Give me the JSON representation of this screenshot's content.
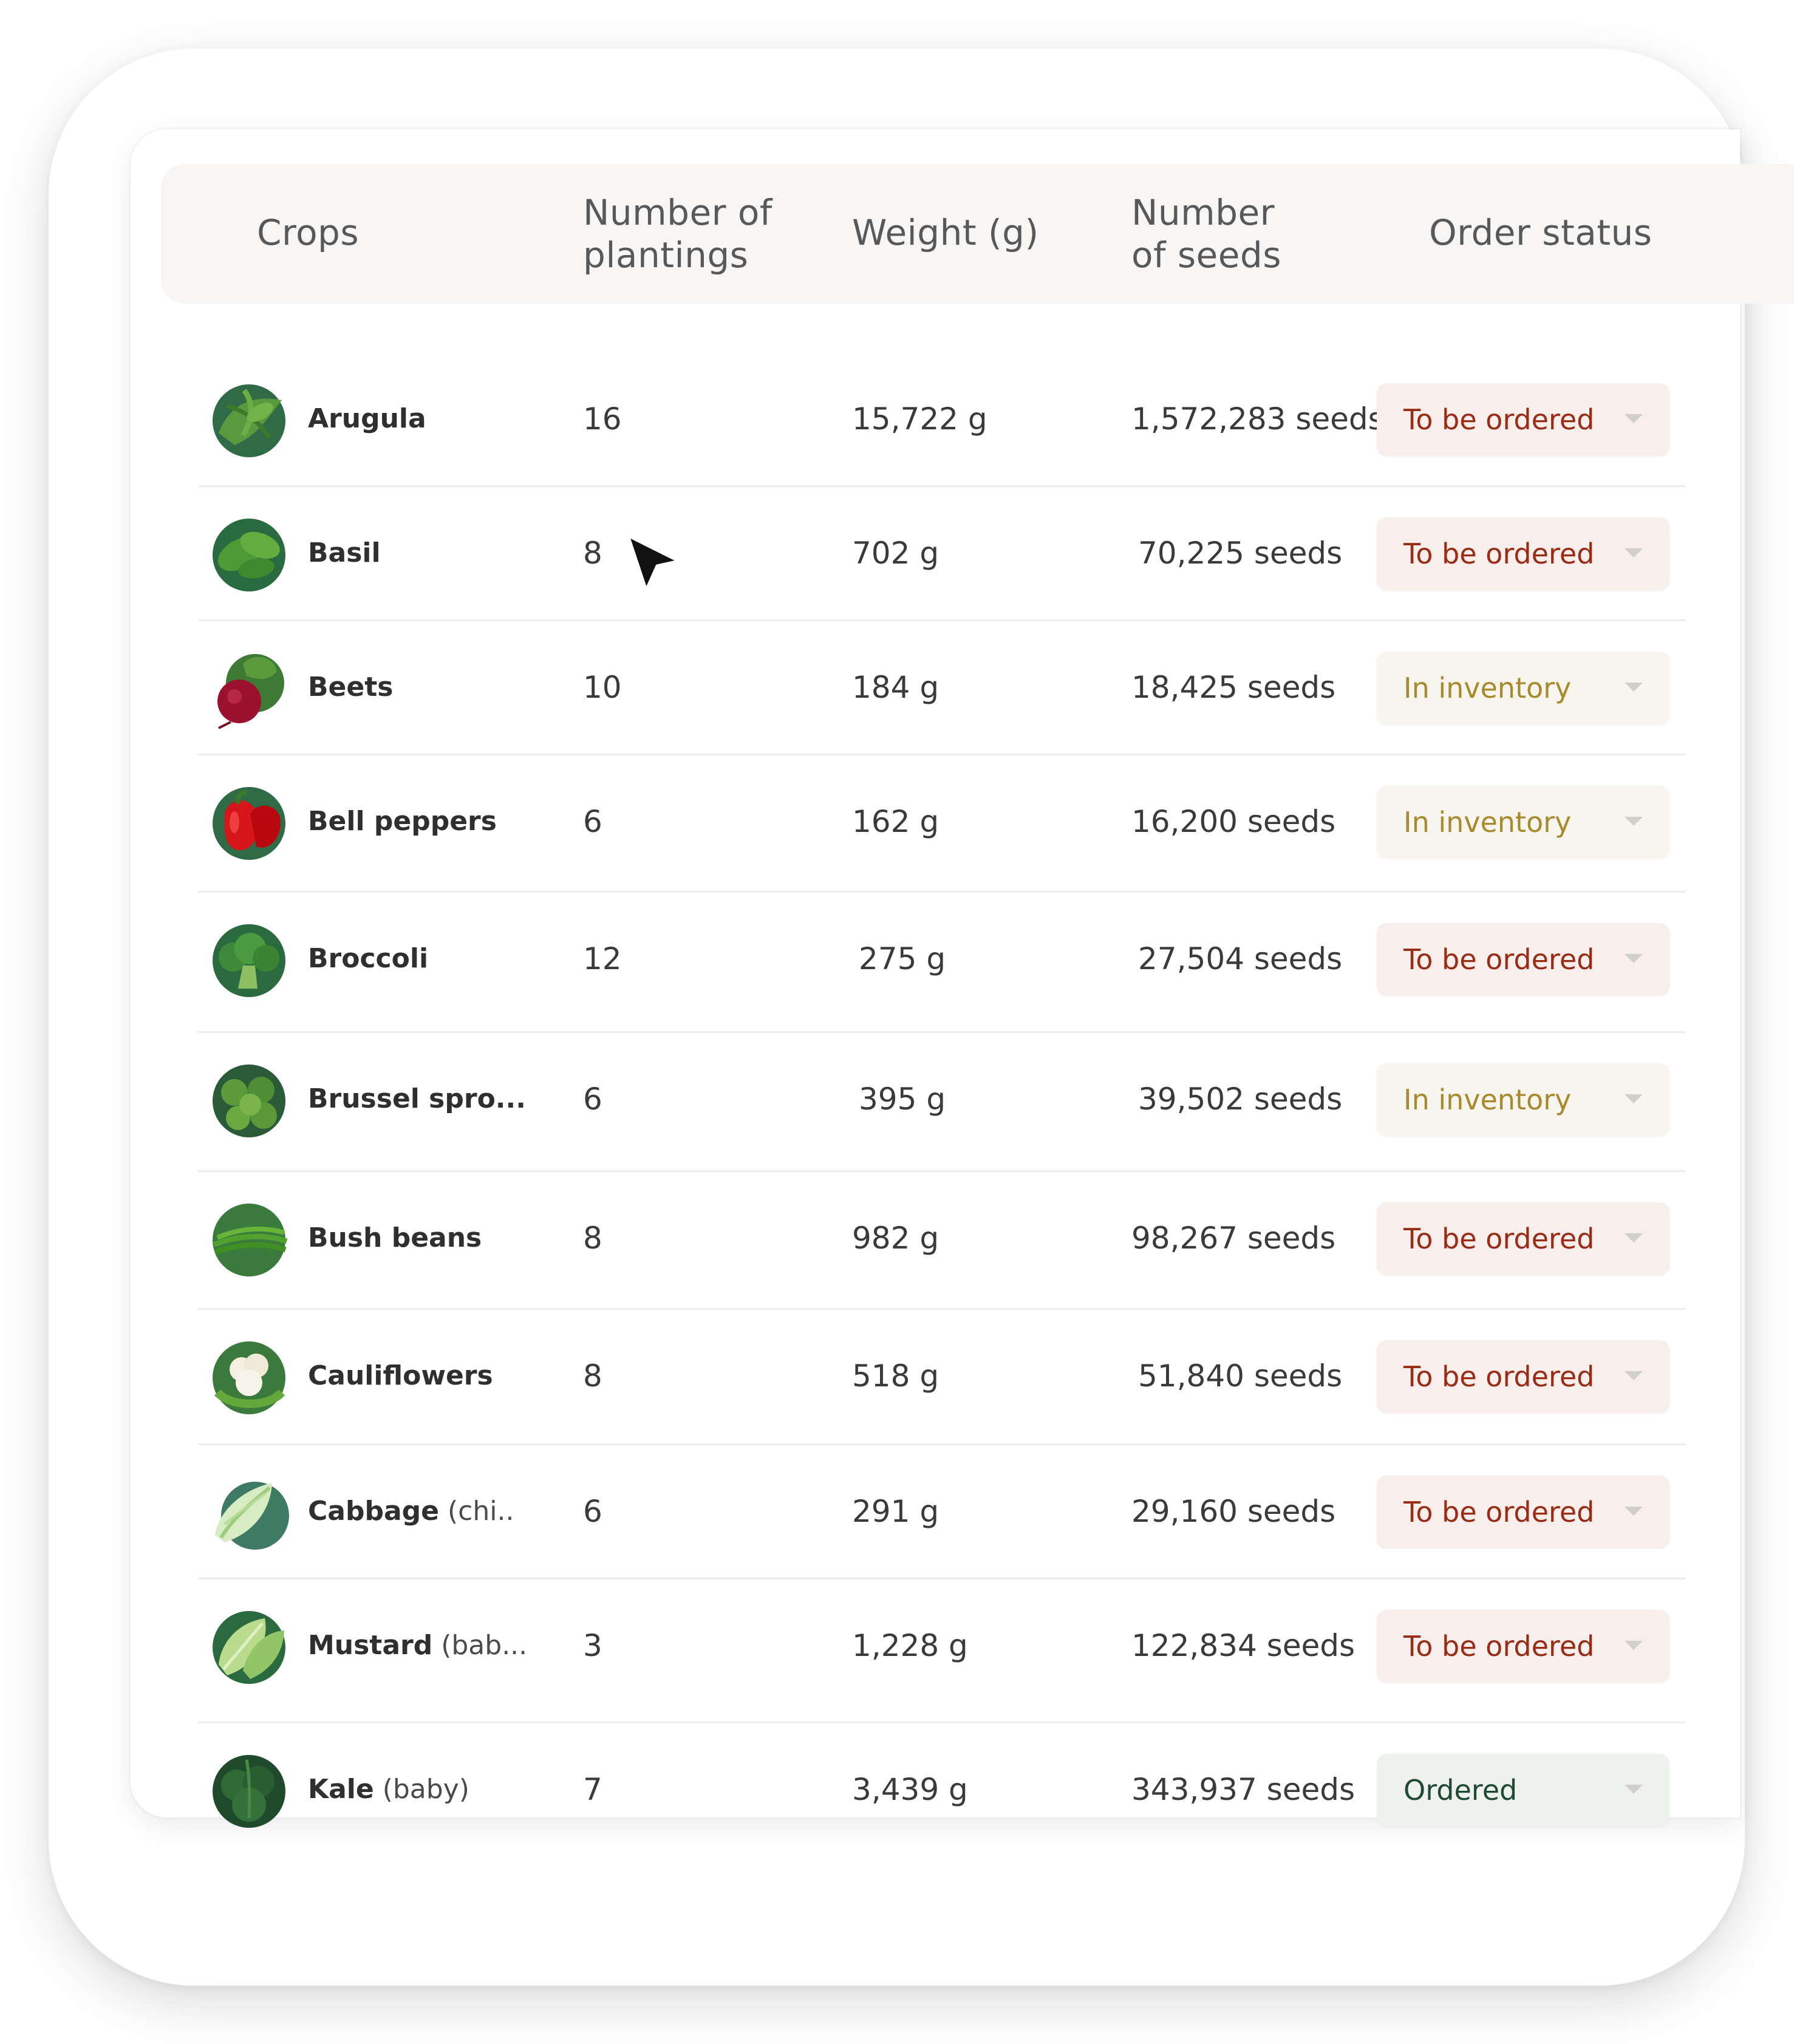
{
  "columns": {
    "crops": "Crops",
    "plantings_1": "Number of",
    "plantings_2": "plantings",
    "weight": "Weight (g)",
    "seeds_1": "Number",
    "seeds_2": "of seeds",
    "status": "Order status"
  },
  "rows": [
    {
      "name": "Arugula",
      "qualifier": "",
      "plantings": "16",
      "weight": "15,722 g",
      "seeds": "1,572,283 seeds",
      "status": "To be ordered",
      "status_kind": "order"
    },
    {
      "name": "Basil",
      "qualifier": "",
      "plantings": "8",
      "weight": "702 g",
      "seeds": "70,225 seeds",
      "status": "To be ordered",
      "status_kind": "order"
    },
    {
      "name": "Beets",
      "qualifier": "",
      "plantings": "10",
      "weight": "184 g",
      "seeds": "18,425 seeds",
      "status": "In inventory",
      "status_kind": "inventory"
    },
    {
      "name": "Bell peppers",
      "qualifier": "",
      "plantings": "6",
      "weight": "162 g",
      "seeds": "16,200 seeds",
      "status": "In inventory",
      "status_kind": "inventory"
    },
    {
      "name": "Broccoli",
      "qualifier": "",
      "plantings": "12",
      "weight": "275 g",
      "seeds": "27,504 seeds",
      "status": "To be ordered",
      "status_kind": "order"
    },
    {
      "name": "Brussel spro...",
      "qualifier": "",
      "plantings": "6",
      "weight": "395 g",
      "seeds": "39,502 seeds",
      "status": "In inventory",
      "status_kind": "inventory"
    },
    {
      "name": "Bush beans",
      "qualifier": "",
      "plantings": "8",
      "weight": "982 g",
      "seeds": "98,267 seeds",
      "status": "To be ordered",
      "status_kind": "order"
    },
    {
      "name": "Cauliflowers",
      "qualifier": "",
      "plantings": "8",
      "weight": "518 g",
      "seeds": "51,840 seeds",
      "status": "To be ordered",
      "status_kind": "order"
    },
    {
      "name": "Cabbage",
      "qualifier": " (chi..",
      "plantings": "6",
      "weight": "291 g",
      "seeds": "29,160 seeds",
      "status": "To be ordered",
      "status_kind": "order"
    },
    {
      "name": "Mustard",
      "qualifier": " (bab...",
      "plantings": "3",
      "weight": "1,228 g",
      "seeds": "122,834 seeds",
      "status": "To be ordered",
      "status_kind": "order"
    },
    {
      "name": "Kale",
      "qualifier": " (baby)",
      "plantings": "7",
      "weight": "3,439 g",
      "seeds": "343,937 seeds",
      "status": "Ordered",
      "status_kind": "ordered"
    }
  ],
  "icons": [
    "arugula-icon",
    "basil-icon",
    "beet-icon",
    "bell-pepper-icon",
    "broccoli-icon",
    "brussel-sprouts-icon",
    "bush-beans-icon",
    "cauliflower-icon",
    "cabbage-icon",
    "mustard-icon",
    "kale-icon",
    "chevron-down-icon",
    "mouse-cursor-icon"
  ],
  "colors": {
    "to_be_ordered_text": "#9a2b14",
    "to_be_ordered_bg": "#f8eeec",
    "in_inventory_text": "#a88a2c",
    "in_inventory_bg": "#f8f5ef",
    "ordered_text": "#1f4a32",
    "ordered_bg": "#eef1ee"
  }
}
